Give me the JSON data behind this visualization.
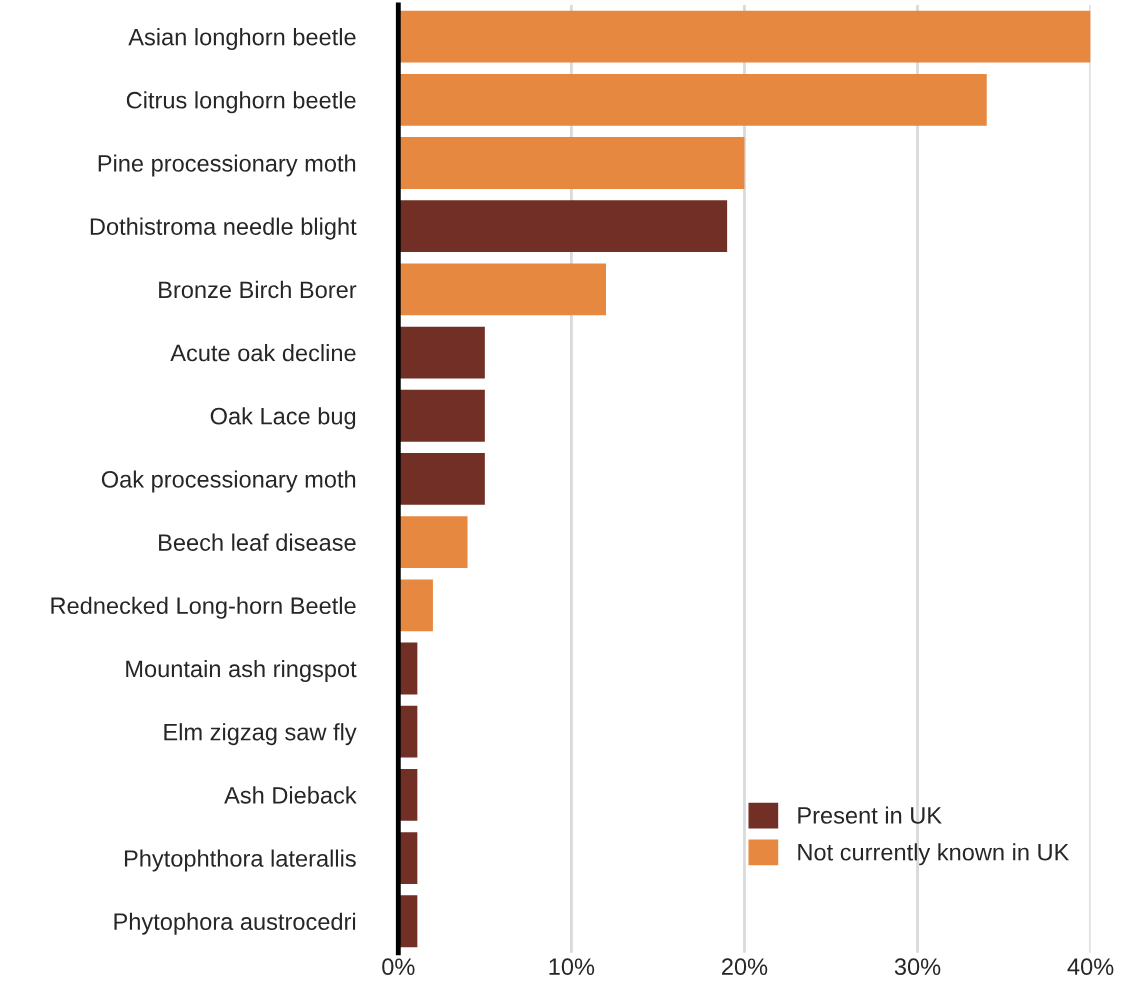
{
  "chart_data": {
    "type": "bar",
    "orientation": "horizontal",
    "stacked": true,
    "categories": [
      "Asian longhorn beetle",
      "Citrus longhorn beetle",
      "Pine processionary moth",
      "Dothistroma needle blight",
      "Bronze Birch Borer",
      "Acute oak decline",
      "Oak Lace bug",
      "Oak processionary moth",
      "Beech leaf disease",
      "Rednecked Long-horn Beetle",
      "Mountain ash ringspot",
      "Elm zigzag saw fly",
      "Ash Dieback",
      "Phytophthora laterallis",
      "Phytophora austrocedri"
    ],
    "series": [
      {
        "name": "Present in UK",
        "color": "#722f25",
        "values": [
          null,
          null,
          null,
          19,
          null,
          5,
          5,
          5,
          null,
          null,
          1.1,
          1.1,
          1.1,
          1.1,
          1.1
        ]
      },
      {
        "name": "Not currently known in UK",
        "color": "#e6883f",
        "values": [
          40,
          34,
          20,
          null,
          12,
          null,
          null,
          null,
          4,
          2,
          null,
          null,
          null,
          null,
          null
        ]
      }
    ],
    "xlim": [
      0,
      40
    ],
    "xticks": [
      {
        "value": 0,
        "label": "0%"
      },
      {
        "value": 10,
        "label": "10%"
      },
      {
        "value": 20,
        "label": "20%"
      },
      {
        "value": 30,
        "label": "30%"
      },
      {
        "value": 40,
        "label": "40%"
      }
    ],
    "grid": "x",
    "legend": "bottom right"
  }
}
